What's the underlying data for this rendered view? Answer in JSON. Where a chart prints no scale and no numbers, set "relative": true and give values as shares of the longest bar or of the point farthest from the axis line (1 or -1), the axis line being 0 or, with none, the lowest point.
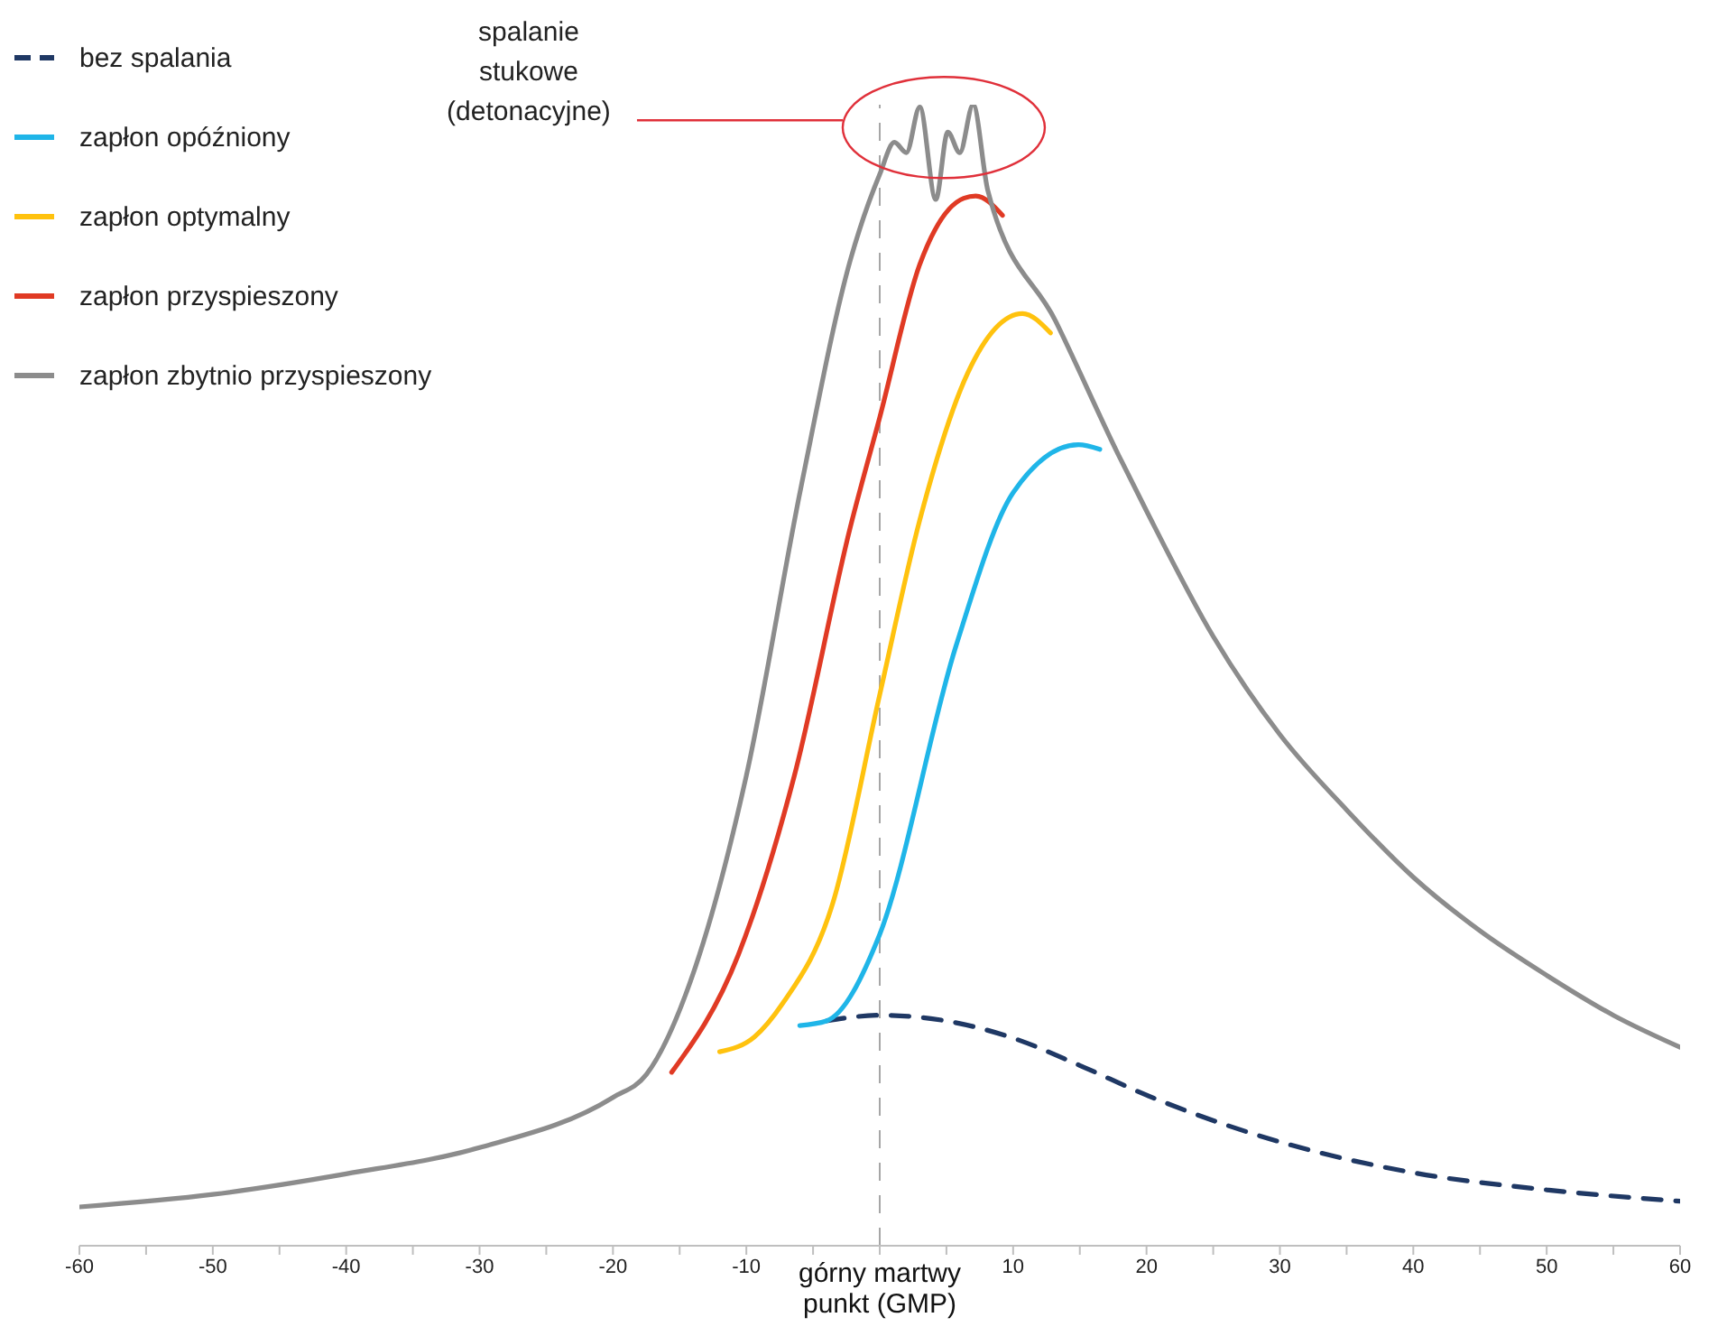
{
  "chart_data": {
    "type": "line",
    "relative": true,
    "xlim": [
      -60,
      60
    ],
    "xticks": [
      -60,
      {
        "value": -55,
        "label": null
      },
      -50,
      {
        "value": -45,
        "label": null
      },
      -40,
      {
        "value": -35,
        "label": null
      },
      -30,
      {
        "value": -25,
        "label": null
      },
      -20,
      {
        "value": -15,
        "label": null
      },
      -10,
      {
        "value": -5,
        "label": null
      },
      {
        "value": 0,
        "label": null
      },
      {
        "value": 5,
        "label": null
      },
      10,
      {
        "value": 15,
        "label": null
      },
      20,
      {
        "value": 25,
        "label": null
      },
      30,
      {
        "value": 35,
        "label": null
      },
      40,
      {
        "value": 45,
        "label": null
      },
      50,
      {
        "value": 55,
        "label": null
      },
      60
    ],
    "grid": false,
    "legend": "top left",
    "marker": "none",
    "ref_lines": [
      {
        "axis": "x",
        "value": 0,
        "label": "górny martwy punkt (GMP)",
        "color": "#a6a6a6",
        "line_style": "dashed"
      }
    ],
    "annotations": [
      "spalanie stukowe (detonacyjne)"
    ],
    "series": [
      {
        "name": "bez spalania",
        "color": "#1f3864",
        "line_style": "dashed",
        "x": [
          -4,
          0,
          5,
          10,
          15,
          20,
          30,
          40,
          50,
          60
        ],
        "values": [
          0.197,
          0.202,
          0.197,
          0.182,
          0.158,
          0.132,
          0.091,
          0.064,
          0.049,
          0.039
        ]
      },
      {
        "name": "zapłon opóźniony",
        "color": "#1fb5e8",
        "line_style": "solid",
        "x": [
          -6,
          -4,
          0,
          5.7,
          10,
          14.9,
          16.5
        ],
        "values": [
          0.193,
          0.197,
          0.273,
          0.525,
          0.66,
          0.702,
          0.698
        ]
      },
      {
        "name": "zapłon optymalny",
        "color": "#ffc20e",
        "line_style": "solid",
        "x": [
          -12,
          -9.4,
          -7.3,
          -3.5,
          0,
          3,
          6.6,
          10.7,
          12.8
        ],
        "values": [
          0.17,
          0.183,
          0.212,
          0.301,
          0.483,
          0.636,
          0.765,
          0.817,
          0.8
        ]
      },
      {
        "name": "zapłon przyspieszony",
        "color": "#e03a24",
        "line_style": "solid",
        "x": [
          -15.6,
          -10.6,
          -6.4,
          -2.2,
          0,
          3,
          6.3,
          7.2,
          9.2
        ],
        "values": [
          0.152,
          0.255,
          0.412,
          0.63,
          0.726,
          0.86,
          0.918,
          0.92,
          0.903
        ]
      },
      {
        "name": "zapłon zbytnio przyspieszony",
        "color": "#8c8c8c",
        "line_style": "solid",
        "x": [
          -60,
          -50,
          -40,
          -30,
          -20,
          -17.5,
          -13.8,
          -10,
          -5.9,
          -2.2,
          0,
          1.1,
          2,
          3,
          4.2,
          5.1,
          6,
          7,
          8.1,
          13.2,
          17.9,
          20,
          25,
          30,
          35,
          40,
          45,
          50,
          55,
          60
        ],
        "values": [
          0.034,
          0.045,
          0.063,
          0.086,
          0.13,
          0.15,
          0.245,
          0.412,
          0.665,
          0.864,
          0.939,
          0.967,
          0.958,
          0.998,
          0.917,
          0.976,
          0.958,
          1.0,
          0.925,
          0.81,
          0.693,
          0.644,
          0.534,
          0.448,
          0.382,
          0.323,
          0.276,
          0.237,
          0.202,
          0.174
        ]
      }
    ]
  }
}
